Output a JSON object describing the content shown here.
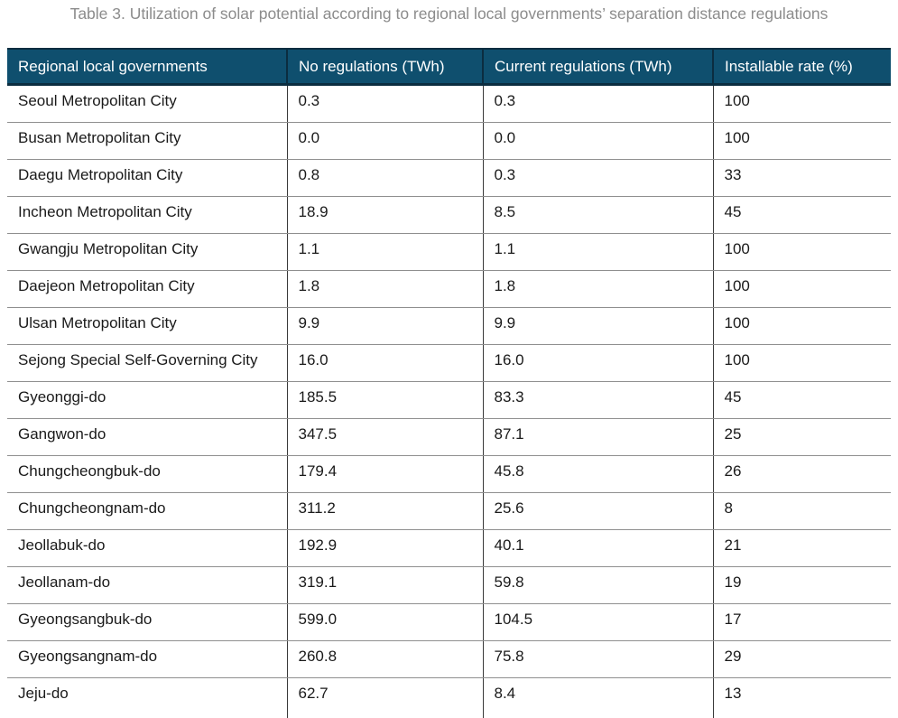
{
  "title": "Table 3. Utilization of solar potential according to regional local governments’ separation distance regulations",
  "table": {
    "columns": [
      "Regional local governments",
      "No regulations (TWh)",
      "Current regulations (TWh)",
      "Installable rate (%)"
    ],
    "rows": [
      [
        "Seoul Metropolitan City",
        "0.3",
        "0.3",
        "100"
      ],
      [
        "Busan Metropolitan City",
        "0.0",
        "0.0",
        "100"
      ],
      [
        "Daegu Metropolitan City",
        "0.8",
        "0.3",
        "33"
      ],
      [
        "Incheon Metropolitan City",
        "18.9",
        "8.5",
        "45"
      ],
      [
        "Gwangju Metropolitan City",
        "1.1",
        "1.1",
        "100"
      ],
      [
        "Daejeon Metropolitan City",
        "1.8",
        "1.8",
        "100"
      ],
      [
        "Ulsan Metropolitan City",
        "9.9",
        "9.9",
        "100"
      ],
      [
        "Sejong Special Self-Governing City",
        "16.0",
        "16.0",
        "100"
      ],
      [
        "Gyeonggi-do",
        "185.5",
        "83.3",
        "45"
      ],
      [
        "Gangwon-do",
        "347.5",
        "87.1",
        "25"
      ],
      [
        "Chungcheongbuk-do",
        "179.4",
        "45.8",
        "26"
      ],
      [
        "Chungcheongnam-do",
        "311.2",
        "25.6",
        "8"
      ],
      [
        "Jeollabuk-do",
        "192.9",
        "40.1",
        "21"
      ],
      [
        "Jeollanam-do",
        "319.1",
        "59.8",
        "19"
      ],
      [
        "Gyeongsangbuk-do",
        "599.0",
        "104.5",
        "17"
      ],
      [
        "Gyeongsangnam-do",
        "260.8",
        "75.8",
        "29"
      ],
      [
        "Jeju-do",
        "62.7",
        "8.4",
        "13"
      ]
    ]
  },
  "colors": {
    "header_background": "#0f4f6e",
    "header_border": "#0b2d40",
    "header_text": "#ffffff",
    "body_text": "#1a1a1a",
    "row_divider": "#8f8f8f",
    "column_divider": "#3a3a3a",
    "caption_text": "#8c8c8c"
  },
  "chart_data": {
    "type": "table",
    "title": "Table 3. Utilization of solar potential according to regional local governments’ separation distance regulations",
    "columns": [
      "Regional local governments",
      "No regulations (TWh)",
      "Current regulations (TWh)",
      "Installable rate (%)"
    ],
    "rows": [
      [
        "Seoul Metropolitan City",
        0.3,
        0.3,
        100
      ],
      [
        "Busan Metropolitan City",
        0.0,
        0.0,
        100
      ],
      [
        "Daegu Metropolitan City",
        0.8,
        0.3,
        33
      ],
      [
        "Incheon Metropolitan City",
        18.9,
        8.5,
        45
      ],
      [
        "Gwangju Metropolitan City",
        1.1,
        1.1,
        100
      ],
      [
        "Daejeon Metropolitan City",
        1.8,
        1.8,
        100
      ],
      [
        "Ulsan Metropolitan City",
        9.9,
        9.9,
        100
      ],
      [
        "Sejong Special Self-Governing City",
        16.0,
        16.0,
        100
      ],
      [
        "Gyeonggi-do",
        185.5,
        83.3,
        45
      ],
      [
        "Gangwon-do",
        347.5,
        87.1,
        25
      ],
      [
        "Chungcheongbuk-do",
        179.4,
        45.8,
        26
      ],
      [
        "Chungcheongnam-do",
        311.2,
        25.6,
        8
      ],
      [
        "Jeollabuk-do",
        192.9,
        40.1,
        21
      ],
      [
        "Jeollanam-do",
        319.1,
        59.8,
        19
      ],
      [
        "Gyeongsangbuk-do",
        599.0,
        104.5,
        17
      ],
      [
        "Gyeongsangnam-do",
        260.8,
        75.8,
        29
      ],
      [
        "Jeju-do",
        62.7,
        8.4,
        13
      ]
    ]
  }
}
